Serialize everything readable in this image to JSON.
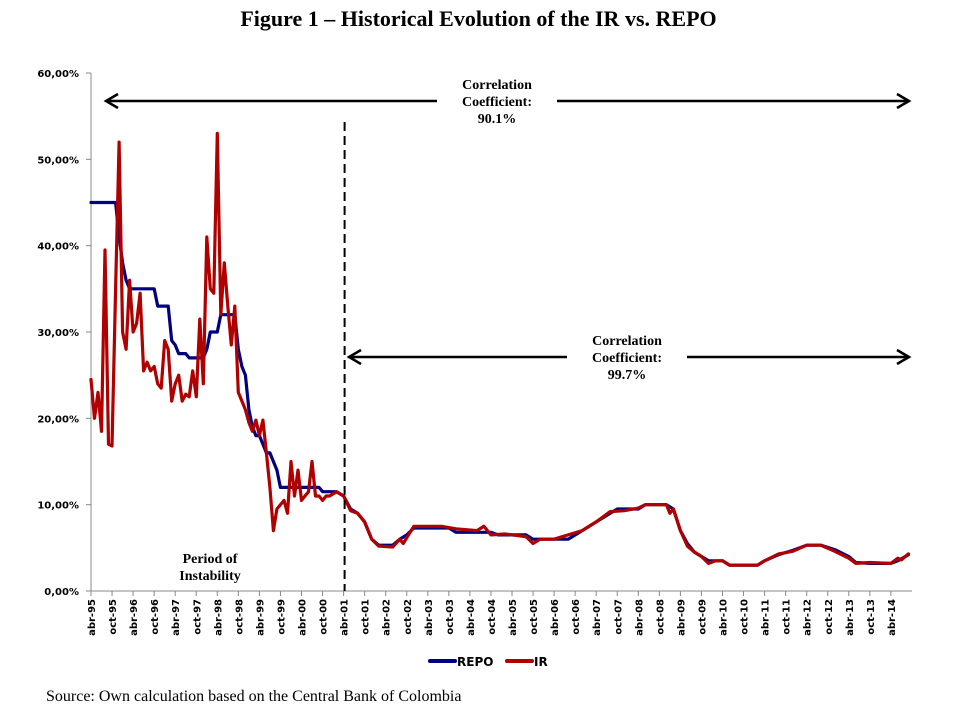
{
  "figure": {
    "title": "Figure 1 – Historical Evolution of the IR vs. REPO",
    "source": "Source: Own calculation based on the Central Bank of Colombia"
  },
  "chart_data": {
    "type": "line",
    "title": "Figure 1 – Historical Evolution of the IR vs. REPO",
    "xlabel": "",
    "ylabel": "",
    "ylim": [
      0,
      60
    ],
    "y_ticks": [
      "0,00%",
      "10,00%",
      "20,00%",
      "30,00%",
      "40,00%",
      "50,00%",
      "60,00%"
    ],
    "y_tick_values": [
      0,
      10,
      20,
      30,
      40,
      50,
      60
    ],
    "x_start": "abr-95",
    "x_unit": "months since abr-95",
    "x_ticks": [
      "abr-95",
      "oct-95",
      "abr-96",
      "oct-96",
      "abr-97",
      "oct-97",
      "abr-98",
      "oct-98",
      "abr-99",
      "oct-99",
      "abr-00",
      "oct-00",
      "abr-01",
      "oct-01",
      "abr-02",
      "oct-02",
      "abr-03",
      "oct-03",
      "abr-04",
      "oct-04",
      "abr-05",
      "oct-05",
      "abr-06",
      "oct-06",
      "abr-07",
      "oct-07",
      "abr-08",
      "oct-08",
      "abr-09",
      "oct-09",
      "abr-10",
      "oct-10",
      "abr-11",
      "oct-11",
      "abr-12",
      "oct-12",
      "abr-13",
      "oct-13",
      "abr-14"
    ],
    "x_max_months": 233,
    "grid": false,
    "legend": {
      "position": "bottom",
      "entries": [
        {
          "name": "REPO",
          "color": "#000080"
        },
        {
          "name": "IR",
          "color": "#b00000"
        }
      ]
    },
    "series": [
      {
        "name": "REPO",
        "color": "#000080",
        "points": [
          [
            0,
            45
          ],
          [
            7,
            45
          ],
          [
            8,
            41
          ],
          [
            9,
            38
          ],
          [
            10,
            36
          ],
          [
            11,
            35
          ],
          [
            18,
            35
          ],
          [
            19,
            33
          ],
          [
            22,
            33
          ],
          [
            23,
            29
          ],
          [
            24,
            28.5
          ],
          [
            25,
            27.5
          ],
          [
            27,
            27.5
          ],
          [
            28,
            27
          ],
          [
            32,
            27
          ],
          [
            33,
            28
          ],
          [
            34,
            30
          ],
          [
            36,
            30
          ],
          [
            37,
            32
          ],
          [
            41,
            32
          ],
          [
            42,
            28
          ],
          [
            43,
            26
          ],
          [
            44,
            25
          ],
          [
            45,
            21
          ],
          [
            46,
            19
          ],
          [
            47,
            18
          ],
          [
            48,
            18
          ],
          [
            49,
            17
          ],
          [
            50,
            16
          ],
          [
            51,
            16
          ],
          [
            52,
            15
          ],
          [
            53,
            14
          ],
          [
            54,
            12
          ],
          [
            65,
            12
          ],
          [
            66,
            11.5
          ],
          [
            70,
            11.5
          ],
          [
            72,
            11
          ],
          [
            74,
            9.5
          ],
          [
            76,
            9
          ],
          [
            78,
            8
          ],
          [
            80,
            6
          ],
          [
            82,
            5.3
          ],
          [
            86,
            5.3
          ],
          [
            88,
            6
          ],
          [
            90,
            6.5
          ],
          [
            92,
            7.3
          ],
          [
            102,
            7.3
          ],
          [
            104,
            6.8
          ],
          [
            114,
            6.8
          ],
          [
            116,
            6.5
          ],
          [
            124,
            6.5
          ],
          [
            126,
            6
          ],
          [
            136,
            6
          ],
          [
            140,
            7
          ],
          [
            144,
            8
          ],
          [
            148,
            9
          ],
          [
            150,
            9.5
          ],
          [
            156,
            9.5
          ],
          [
            158,
            10
          ],
          [
            164,
            10
          ],
          [
            166,
            9.5
          ],
          [
            168,
            7
          ],
          [
            170,
            5.5
          ],
          [
            172,
            4.5
          ],
          [
            174,
            4
          ],
          [
            176,
            3.5
          ],
          [
            180,
            3.5
          ],
          [
            182,
            3
          ],
          [
            190,
            3
          ],
          [
            192,
            3.5
          ],
          [
            196,
            4.2
          ],
          [
            200,
            4.7
          ],
          [
            204,
            5.3
          ],
          [
            208,
            5.3
          ],
          [
            212,
            4.8
          ],
          [
            216,
            4
          ],
          [
            218,
            3.3
          ],
          [
            222,
            3.2
          ],
          [
            228,
            3.2
          ],
          [
            230,
            3.5
          ],
          [
            233,
            4.2
          ]
        ]
      },
      {
        "name": "IR",
        "color": "#b00000",
        "points": [
          [
            0,
            24.5
          ],
          [
            1,
            20
          ],
          [
            2,
            23
          ],
          [
            3,
            18.5
          ],
          [
            4,
            39.5
          ],
          [
            5,
            17
          ],
          [
            6,
            16.8
          ],
          [
            7,
            35
          ],
          [
            8,
            52
          ],
          [
            9,
            30
          ],
          [
            10,
            28
          ],
          [
            11,
            36
          ],
          [
            12,
            30
          ],
          [
            13,
            31
          ],
          [
            14,
            34.5
          ],
          [
            15,
            25.5
          ],
          [
            16,
            26.5
          ],
          [
            17,
            25.5
          ],
          [
            18,
            26
          ],
          [
            19,
            24
          ],
          [
            20,
            23.5
          ],
          [
            21,
            29
          ],
          [
            22,
            28
          ],
          [
            23,
            22
          ],
          [
            24,
            24
          ],
          [
            25,
            25
          ],
          [
            26,
            22
          ],
          [
            27,
            22.8
          ],
          [
            28,
            22.5
          ],
          [
            29,
            25.5
          ],
          [
            30,
            22.5
          ],
          [
            31,
            31.5
          ],
          [
            32,
            24
          ],
          [
            33,
            41
          ],
          [
            34,
            35
          ],
          [
            35,
            34.5
          ],
          [
            36,
            53
          ],
          [
            37,
            32
          ],
          [
            38,
            38
          ],
          [
            39,
            33
          ],
          [
            40,
            28.5
          ],
          [
            41,
            33
          ],
          [
            42,
            23
          ],
          [
            43,
            22
          ],
          [
            44,
            21
          ],
          [
            45,
            19.5
          ],
          [
            46,
            18.5
          ],
          [
            47,
            19.8
          ],
          [
            48,
            18
          ],
          [
            49,
            19.8
          ],
          [
            50,
            16
          ],
          [
            51,
            12
          ],
          [
            52,
            7
          ],
          [
            53,
            9.5
          ],
          [
            54,
            10
          ],
          [
            55,
            10.5
          ],
          [
            56,
            9
          ],
          [
            57,
            15
          ],
          [
            58,
            11
          ],
          [
            59,
            14
          ],
          [
            60,
            10.5
          ],
          [
            61,
            11
          ],
          [
            62,
            11.5
          ],
          [
            63,
            15
          ],
          [
            64,
            11
          ],
          [
            65,
            11
          ],
          [
            66,
            10.5
          ],
          [
            67,
            11
          ],
          [
            68,
            11
          ],
          [
            70,
            11.5
          ],
          [
            72,
            11
          ],
          [
            74,
            9.3
          ],
          [
            76,
            9
          ],
          [
            78,
            8
          ],
          [
            80,
            6
          ],
          [
            82,
            5.2
          ],
          [
            86,
            5.1
          ],
          [
            88,
            6
          ],
          [
            89,
            5.5
          ],
          [
            92,
            7.5
          ],
          [
            96,
            7.5
          ],
          [
            100,
            7.5
          ],
          [
            104,
            7.2
          ],
          [
            110,
            7
          ],
          [
            112,
            7.5
          ],
          [
            114,
            6.5
          ],
          [
            118,
            6.6
          ],
          [
            124,
            6.3
          ],
          [
            126,
            5.5
          ],
          [
            128,
            6
          ],
          [
            132,
            6
          ],
          [
            136,
            6.5
          ],
          [
            140,
            7
          ],
          [
            144,
            8
          ],
          [
            148,
            9.2
          ],
          [
            152,
            9.3
          ],
          [
            156,
            9.6
          ],
          [
            158,
            10
          ],
          [
            164,
            10
          ],
          [
            165,
            9
          ],
          [
            166,
            9.5
          ],
          [
            168,
            7
          ],
          [
            170,
            5.2
          ],
          [
            172,
            4.5
          ],
          [
            174,
            4
          ],
          [
            176,
            3.2
          ],
          [
            178,
            3.5
          ],
          [
            180,
            3.5
          ],
          [
            182,
            3
          ],
          [
            190,
            3
          ],
          [
            192,
            3.5
          ],
          [
            196,
            4.3
          ],
          [
            200,
            4.6
          ],
          [
            204,
            5.3
          ],
          [
            208,
            5.3
          ],
          [
            212,
            4.6
          ],
          [
            216,
            3.8
          ],
          [
            218,
            3.2
          ],
          [
            222,
            3.3
          ],
          [
            228,
            3.2
          ],
          [
            230,
            3.8
          ],
          [
            231,
            3.6
          ],
          [
            233,
            4.3
          ]
        ]
      }
    ],
    "annotations": [
      {
        "name": "correlation-full-period",
        "lines": [
          "Correlation",
          "Coefficient:",
          "90.1%"
        ],
        "arrow_from": "abr-95",
        "arrow_to": "end",
        "y_value": 57
      },
      {
        "name": "correlation-post-2001",
        "lines": [
          "Correlation",
          "Coefficient:",
          "99.7%"
        ],
        "arrow_from": "abr-01",
        "arrow_to": "end",
        "y_value": 27
      },
      {
        "name": "period-of-instability",
        "lines": [
          "Period of",
          "Instability"
        ]
      }
    ],
    "divider": {
      "label": "abr-01",
      "month": 72,
      "style": "dashed"
    }
  }
}
